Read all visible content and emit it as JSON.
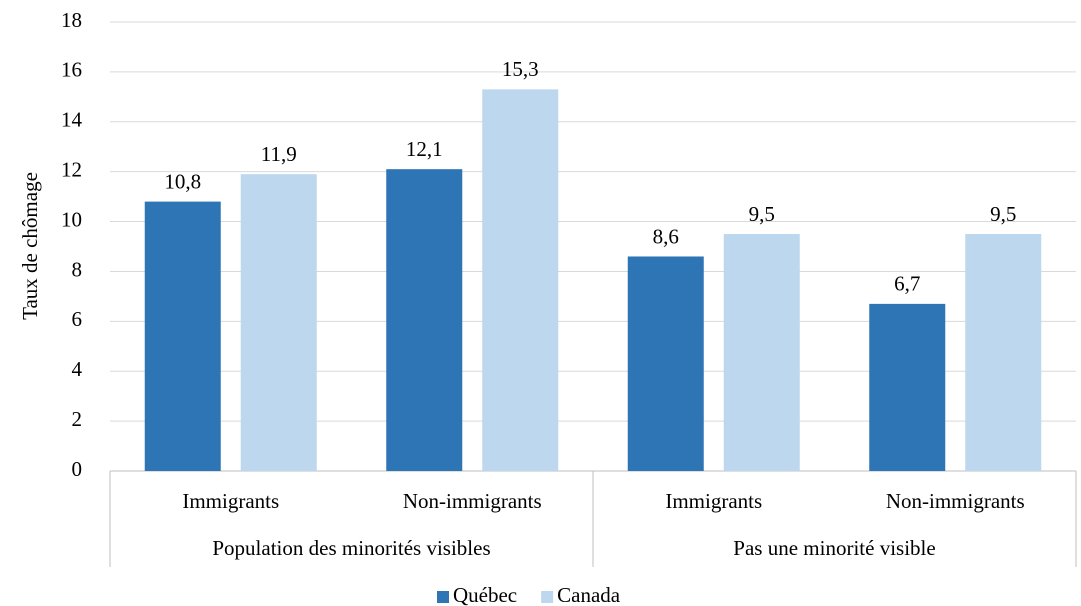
{
  "chart_data": {
    "type": "bar",
    "y_label": "Taux de chômage",
    "categories": [
      "Immigrants",
      "Non-immigrants",
      "Immigrants",
      "Non-immigrants"
    ],
    "groups": [
      "Population des minorités visibles",
      "Pas une minorité visible"
    ],
    "series": [
      {
        "name": "Québec",
        "color": "#2e75b6",
        "values": [
          10.8,
          12.1,
          8.6,
          6.7
        ],
        "value_labels": [
          "10,8",
          "12,1",
          "8,6",
          "6,7"
        ]
      },
      {
        "name": "Canada",
        "color": "#bdd7ee",
        "values": [
          11.9,
          15.3,
          9.5,
          9.5
        ],
        "value_labels": [
          "11,9",
          "15,3",
          "9,5",
          "9,5"
        ]
      }
    ],
    "ylim": [
      0,
      18
    ],
    "yticks": [
      0,
      2,
      4,
      6,
      8,
      10,
      12,
      14,
      16,
      18
    ],
    "grid": true,
    "legend": "bottom"
  }
}
